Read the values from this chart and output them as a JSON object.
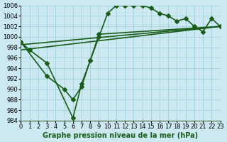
{
  "xlabel": "Graphe pression niveau de la mer (hPa)",
  "xlim": [
    0,
    23
  ],
  "ylim": [
    984,
    1006
  ],
  "yticks": [
    984,
    986,
    988,
    990,
    992,
    994,
    996,
    998,
    1000,
    1002,
    1004,
    1006
  ],
  "xticks": [
    0,
    1,
    2,
    3,
    4,
    5,
    6,
    7,
    8,
    9,
    10,
    11,
    12,
    13,
    14,
    15,
    16,
    17,
    18,
    19,
    20,
    21,
    22,
    23
  ],
  "bg_color": "#cce8f0",
  "grid_color": "#99ccd9",
  "line_color": "#1a5c1a",
  "line1_x": [
    0,
    1,
    3,
    6,
    7,
    8,
    9,
    10,
    11,
    12,
    13,
    14,
    15,
    16,
    17,
    18,
    19,
    20,
    21,
    22,
    23
  ],
  "line1_y": [
    999,
    997.5,
    995,
    984.5,
    991,
    995.5,
    1000,
    1004.5,
    1006,
    1006,
    1006,
    1006,
    1005.5,
    1004.5,
    1004,
    1003,
    1003.5,
    1002,
    1001,
    1003.5,
    1002
  ],
  "line2_x": [
    0,
    3,
    5,
    6,
    7,
    8,
    9,
    23
  ],
  "line2_y": [
    999,
    992.5,
    990,
    988,
    990.5,
    995.5,
    1000.5,
    1002
  ],
  "line3_x": [
    0,
    23
  ],
  "line3_y": [
    997.5,
    1002
  ],
  "line4_x": [
    0,
    23
  ],
  "line4_y": [
    998.5,
    1002
  ],
  "marker": "D",
  "markersize": 3,
  "linewidth": 1.2,
  "fontsize_label": 7,
  "fontsize_tick": 6
}
